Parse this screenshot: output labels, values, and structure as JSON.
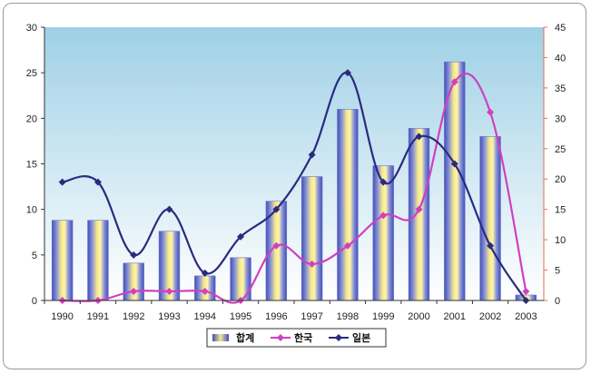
{
  "chart_data": {
    "type": "bar",
    "categories": [
      "1990",
      "1991",
      "1992",
      "1993",
      "1994",
      "1995",
      "1996",
      "1997",
      "1998",
      "1999",
      "2000",
      "2001",
      "2002",
      "2003"
    ],
    "series": [
      {
        "name": "합계",
        "type": "bar",
        "axis": "left",
        "color": "#5060c0",
        "values": [
          8.8,
          8.8,
          4.1,
          7.6,
          2.7,
          4.7,
          10.9,
          13.6,
          21.0,
          14.8,
          18.9,
          26.2,
          18.0,
          0.6
        ]
      },
      {
        "name": "한국",
        "type": "line",
        "axis": "right",
        "color": "#d040c0",
        "values": [
          0,
          0,
          1.5,
          1.5,
          1.5,
          0,
          9.0,
          6.0,
          9.0,
          14.0,
          15.0,
          36.0,
          31.0,
          1.5
        ]
      },
      {
        "name": "일본",
        "type": "line",
        "axis": "right",
        "color": "#2a2a80",
        "values": [
          19.5,
          19.5,
          7.5,
          15.0,
          4.5,
          10.5,
          15.0,
          24.0,
          37.5,
          19.5,
          27.0,
          22.5,
          9.0,
          0
        ]
      }
    ],
    "ylim": [
      0,
      30
    ],
    "y2lim": [
      0,
      45
    ],
    "yticks": [
      "0",
      "5",
      "10",
      "15",
      "20",
      "25",
      "30"
    ],
    "y2ticks": [
      "0",
      "5",
      "10",
      "15",
      "20",
      "25",
      "30",
      "35",
      "40",
      "45"
    ],
    "legend_position": "bottom",
    "background_gradient": [
      "#9fd0e6",
      "#ffffff"
    ]
  }
}
